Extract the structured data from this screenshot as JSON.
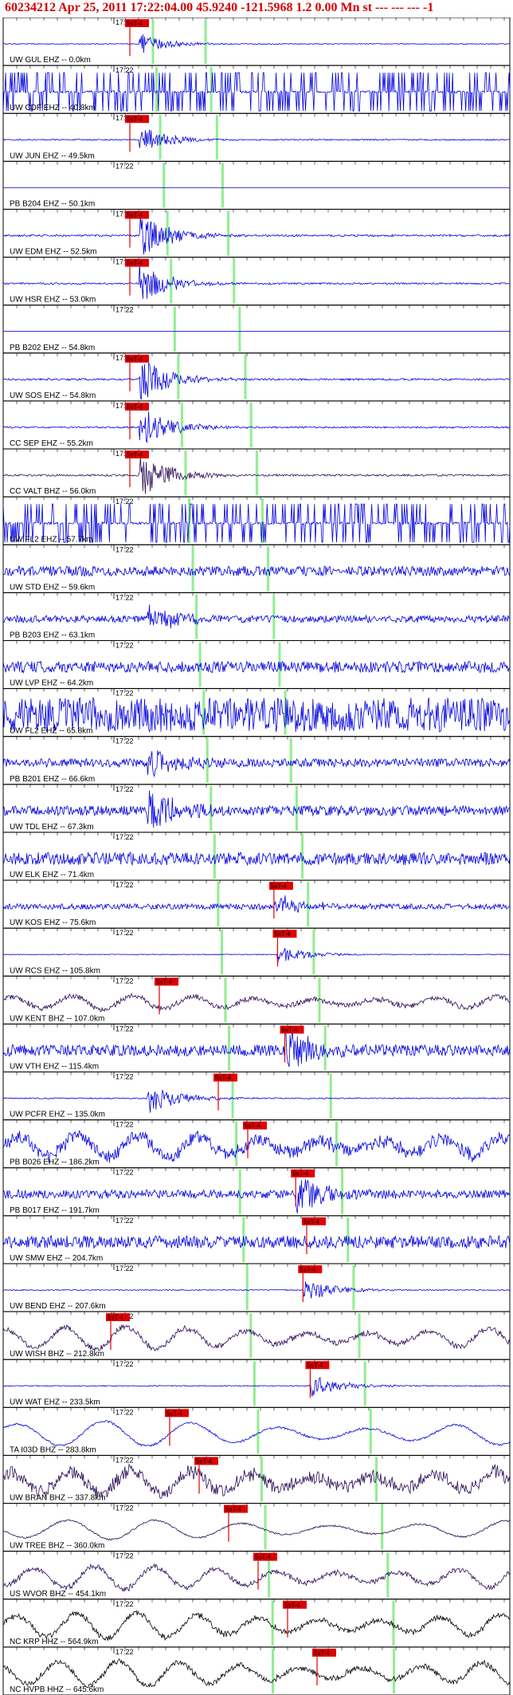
{
  "header": {
    "text": "60234212 Apr 25, 2011 17:22:04.00   45.9240 -121.5968  1.2 0.00 Mn st --- --- ---   -1"
  },
  "chart_data": {
    "type": "line",
    "time_tick_label": "17:22",
    "pick_label": "5sT-4",
    "colors": {
      "blue": "#0000e0",
      "dark": "#2a0a55",
      "black": "#000000",
      "pick": "#e00000",
      "phase": "#90ee90"
    },
    "traces": [
      {
        "label": "UW GUL EHZ -- 0.0km",
        "style": "blue",
        "amp": 0.35,
        "pick": true,
        "events": [
          1
        ],
        "noise": false,
        "wave": false
      },
      {
        "label": "UW CDF EHZ -- 40.8km",
        "style": "blue",
        "amp": 0.9,
        "pick": false,
        "events": [],
        "noise": false,
        "wave": false,
        "spiky": true
      },
      {
        "label": "UW JUN EHZ -- 49.5km",
        "style": "blue",
        "amp": 0.5,
        "pick": true,
        "events": [
          1
        ],
        "noise": false,
        "wave": false
      },
      {
        "label": "PB B204 EHZ -- 50.1km",
        "style": "blue",
        "amp": 0.0,
        "pick": false,
        "events": [],
        "noise": false,
        "wave": false,
        "flat": true
      },
      {
        "label": "UW EDM EHZ -- 52.5km",
        "style": "blue",
        "amp": 0.8,
        "pick": true,
        "events": [
          1
        ],
        "noise": false,
        "wave": false
      },
      {
        "label": "UW HSR EHZ -- 53.0km",
        "style": "blue",
        "amp": 0.7,
        "pick": true,
        "events": [
          1
        ],
        "noise": false,
        "wave": false
      },
      {
        "label": "PB B202 EHZ -- 54.8km",
        "style": "blue",
        "amp": 0.0,
        "pick": false,
        "events": [],
        "noise": false,
        "wave": false,
        "flat": true
      },
      {
        "label": "UW SOS EHZ -- 54.8km",
        "style": "blue",
        "amp": 0.8,
        "pick": true,
        "events": [
          1
        ],
        "noise": false,
        "wave": false
      },
      {
        "label": "CC SEP EHZ -- 55.2km",
        "style": "blue",
        "amp": 0.7,
        "pick": true,
        "events": [
          1
        ],
        "noise": false,
        "wave": false
      },
      {
        "label": "CC VALT BHZ -- 56.0km",
        "style": "dark",
        "amp": 0.8,
        "pick": true,
        "events": [
          1
        ],
        "noise": false,
        "wave": false
      },
      {
        "label": "UW FL2 EHZ -- 57.7km",
        "style": "blue",
        "amp": 0.9,
        "pick": false,
        "events": [],
        "noise": false,
        "wave": false,
        "spiky": true
      },
      {
        "label": "UW STD EHZ -- 59.6km",
        "style": "blue",
        "amp": 0.7,
        "pick": false,
        "events": [],
        "noise": true,
        "wave": false
      },
      {
        "label": "PB B203 EHZ -- 63.1km",
        "style": "blue",
        "amp": 0.5,
        "pick": false,
        "events": [
          1
        ],
        "noise": true,
        "wave": false
      },
      {
        "label": "UW LVP EHZ -- 64.2km",
        "style": "blue",
        "amp": 0.8,
        "pick": false,
        "events": [],
        "noise": true,
        "wave": false
      },
      {
        "label": "UW FL2 EHZ -- 65.8km",
        "style": "blue",
        "amp": 0.95,
        "pick": false,
        "events": [],
        "noise": true,
        "wave": false,
        "dense": true
      },
      {
        "label": "PB B201 EHZ -- 66.6km",
        "style": "blue",
        "amp": 0.6,
        "pick": false,
        "events": [
          1
        ],
        "noise": true,
        "wave": false
      },
      {
        "label": "UW TDL EHZ -- 67.3km",
        "style": "blue",
        "amp": 0.7,
        "pick": false,
        "events": [
          1
        ],
        "noise": true,
        "wave": false
      },
      {
        "label": "UW ELK EHZ -- 71.4km",
        "style": "blue",
        "amp": 0.9,
        "pick": false,
        "events": [],
        "noise": true,
        "wave": false
      },
      {
        "label": "UW KOS EHZ -- 75.6km",
        "style": "blue",
        "amp": 0.4,
        "pick": true,
        "events": [
          2
        ],
        "noise": true,
        "wave": false
      },
      {
        "label": "UW RCS EHZ -- 105.8km",
        "style": "blue",
        "amp": 0.3,
        "pick": true,
        "events": [
          2
        ],
        "noise": false,
        "wave": false
      },
      {
        "label": "UW KENT BHZ -- 107.0km",
        "style": "dark",
        "amp": 0.5,
        "pick": true,
        "events": [],
        "noise": false,
        "wave": true
      },
      {
        "label": "UW VTH EHZ -- 115.4km",
        "style": "blue",
        "amp": 0.8,
        "pick": true,
        "events": [
          2
        ],
        "noise": true,
        "wave": false
      },
      {
        "label": "UW PCFR EHZ -- 135.0km",
        "style": "blue",
        "amp": 0.5,
        "pick": true,
        "events": [
          1
        ],
        "noise": false,
        "wave": false
      },
      {
        "label": "PB B026 EHZ -- 186.2km",
        "style": "blue",
        "amp": 0.8,
        "pick": true,
        "events": [],
        "noise": true,
        "wave": true
      },
      {
        "label": "PB B017 EHZ -- 191.7km",
        "style": "blue",
        "amp": 0.6,
        "pick": true,
        "events": [
          2
        ],
        "noise": true,
        "wave": false
      },
      {
        "label": "UW SMW EHZ -- 204.7km",
        "style": "blue",
        "amp": 0.9,
        "pick": true,
        "events": [],
        "noise": true,
        "wave": false
      },
      {
        "label": "UW BEND EHZ -- 207.6km",
        "style": "blue",
        "amp": 0.4,
        "pick": true,
        "events": [
          2
        ],
        "noise": false,
        "wave": false
      },
      {
        "label": "UW WISH BHZ -- 212.8km",
        "style": "dark",
        "amp": 0.8,
        "pick": true,
        "events": [],
        "noise": false,
        "wave": true
      },
      {
        "label": "UW WAT EHZ -- 233.5km",
        "style": "blue",
        "amp": 0.4,
        "pick": true,
        "events": [
          2
        ],
        "noise": false,
        "wave": false
      },
      {
        "label": "TA I03D BHZ -- 283.8km",
        "style": "blue",
        "amp": 0.9,
        "pick": true,
        "events": [],
        "noise": false,
        "wave": true,
        "smooth": true
      },
      {
        "label": "UW BRAN BHZ -- 337.8km",
        "style": "dark",
        "amp": 0.8,
        "pick": true,
        "events": [],
        "noise": true,
        "wave": true
      },
      {
        "label": "UW TREE BHZ -- 360.0km",
        "style": "dark",
        "amp": 0.7,
        "pick": true,
        "events": [],
        "noise": false,
        "wave": true,
        "smooth": true
      },
      {
        "label": "US WVOR BHZ -- 454.1km",
        "style": "dark",
        "amp": 0.8,
        "pick": true,
        "events": [],
        "noise": false,
        "wave": true
      },
      {
        "label": "NC KRP HHZ -- 564.9km",
        "style": "black",
        "amp": 0.9,
        "pick": true,
        "events": [],
        "noise": false,
        "wave": true
      },
      {
        "label": "NC HVPB HHZ -- 645.6km",
        "style": "black",
        "amp": 0.9,
        "pick": true,
        "events": [],
        "noise": false,
        "wave": true
      }
    ]
  }
}
